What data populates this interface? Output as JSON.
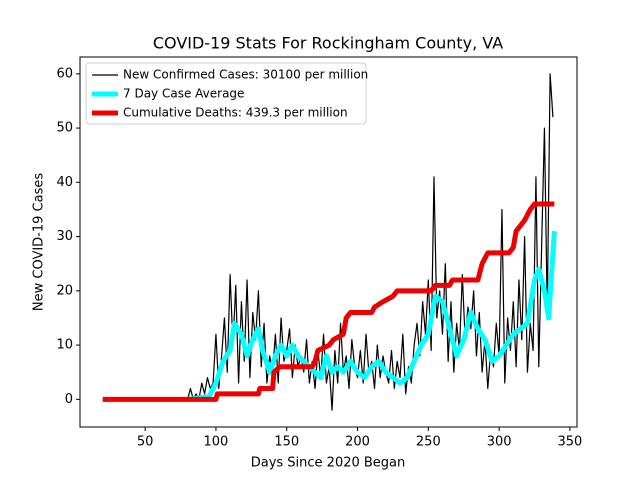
{
  "chart_data": {
    "type": "line",
    "title": "COVID-19 Stats For Rockingham County, VA",
    "x_label": "Days Since 2020 Began",
    "y_label": "New COVID-19 Cases",
    "xlim": [
      4,
      355
    ],
    "ylim": [
      -5.1,
      63.1
    ],
    "xticks": [
      50,
      100,
      150,
      200,
      250,
      300,
      350
    ],
    "yticks": [
      0,
      10,
      20,
      30,
      40,
      50,
      60
    ],
    "legend": "upper left",
    "series": [
      {
        "name": "New Confirmed Cases: 30100 per million",
        "color": "#000000",
        "width": 1.2,
        "x": [
          80,
          82,
          84,
          86,
          88,
          90,
          92,
          94,
          96,
          98,
          100,
          102,
          104,
          106,
          108,
          110,
          112,
          114,
          116,
          118,
          120,
          122,
          124,
          126,
          128,
          130,
          132,
          134,
          136,
          138,
          140,
          142,
          144,
          146,
          148,
          150,
          152,
          154,
          156,
          158,
          160,
          162,
          164,
          166,
          168,
          170,
          172,
          174,
          176,
          178,
          180,
          182,
          184,
          186,
          188,
          190,
          192,
          194,
          196,
          198,
          200,
          202,
          204,
          206,
          208,
          210,
          212,
          214,
          216,
          218,
          220,
          222,
          224,
          226,
          228,
          230,
          232,
          234,
          236,
          238,
          240,
          242,
          244,
          246,
          248,
          250,
          252,
          254,
          256,
          258,
          260,
          262,
          264,
          266,
          268,
          270,
          272,
          274,
          276,
          278,
          280,
          282,
          284,
          286,
          288,
          290,
          292,
          294,
          296,
          298,
          300,
          302,
          304,
          306,
          308,
          310,
          312,
          314,
          316,
          318,
          320,
          322,
          324,
          326,
          328,
          330,
          332,
          334,
          336,
          338
        ],
        "values": [
          0,
          2,
          0,
          1,
          0,
          3,
          1,
          4,
          2,
          3,
          12,
          2,
          8,
          15,
          5,
          23,
          10,
          21,
          3,
          18,
          7,
          22,
          4,
          16,
          11,
          20,
          6,
          14,
          3,
          8,
          5,
          12,
          3,
          15,
          7,
          9,
          13,
          4,
          10,
          6,
          8,
          5,
          11,
          3,
          7,
          2,
          9,
          4,
          12,
          3,
          6,
          -2,
          9,
          3,
          14,
          5,
          8,
          2,
          11,
          6,
          4,
          9,
          3,
          12,
          5,
          7,
          2,
          10,
          4,
          8,
          5,
          3,
          9,
          2,
          7,
          4,
          12,
          1,
          6,
          3,
          10,
          14,
          8,
          18,
          12,
          22,
          9,
          41,
          15,
          20,
          12,
          25,
          7,
          18,
          5,
          14,
          9,
          23,
          11,
          17,
          13,
          20,
          8,
          16,
          5,
          11,
          2,
          9,
          6,
          14,
          8,
          35,
          3,
          15,
          9,
          18,
          6,
          22,
          11,
          30,
          5,
          14,
          9,
          41,
          6,
          28,
          50,
          16,
          60,
          52
        ]
      },
      {
        "name": "7 Day Case Average",
        "color": "#00ffff",
        "width": 5,
        "x": [
          80,
          95,
          100,
          105,
          110,
          113,
          118,
          122,
          126,
          130,
          133,
          138,
          142,
          146,
          150,
          154,
          158,
          162,
          166,
          170,
          174,
          178,
          182,
          186,
          190,
          195,
          200,
          205,
          210,
          215,
          220,
          225,
          230,
          235,
          240,
          245,
          250,
          255,
          260,
          265,
          270,
          275,
          280,
          285,
          290,
          295,
          300,
          305,
          310,
          315,
          320,
          325,
          328,
          332,
          335,
          339
        ],
        "values": [
          0,
          0.5,
          3,
          7,
          9,
          14,
          12,
          8,
          11,
          13,
          9,
          5,
          8,
          10,
          8,
          10,
          8,
          7,
          6,
          5,
          4,
          8,
          5,
          6,
          5,
          7,
          5,
          4,
          6,
          7,
          5,
          4,
          3,
          4,
          7,
          10,
          12,
          19,
          18,
          13,
          8,
          11,
          16,
          13,
          11,
          7,
          8,
          10,
          12,
          13,
          14,
          22,
          24,
          20,
          15,
          31
        ]
      },
      {
        "name": "Cumulative Deaths: 439.3 per million",
        "color": "#ee0000",
        "width": 5,
        "x": [
          20,
          100,
          101,
          130,
          131,
          140,
          141,
          145,
          168,
          170,
          172,
          180,
          183,
          190,
          192,
          195,
          210,
          212,
          218,
          225,
          228,
          252,
          255,
          265,
          267,
          285,
          288,
          292,
          307,
          310,
          312,
          318,
          322,
          325,
          339
        ],
        "values": [
          0,
          0,
          1,
          1,
          2,
          2,
          5,
          6,
          6,
          7,
          9,
          10,
          11,
          12,
          15,
          16,
          16,
          17,
          18,
          19,
          20,
          20,
          21,
          21,
          22,
          22,
          25,
          27,
          27,
          28,
          31,
          33,
          35,
          36,
          36
        ]
      }
    ]
  }
}
